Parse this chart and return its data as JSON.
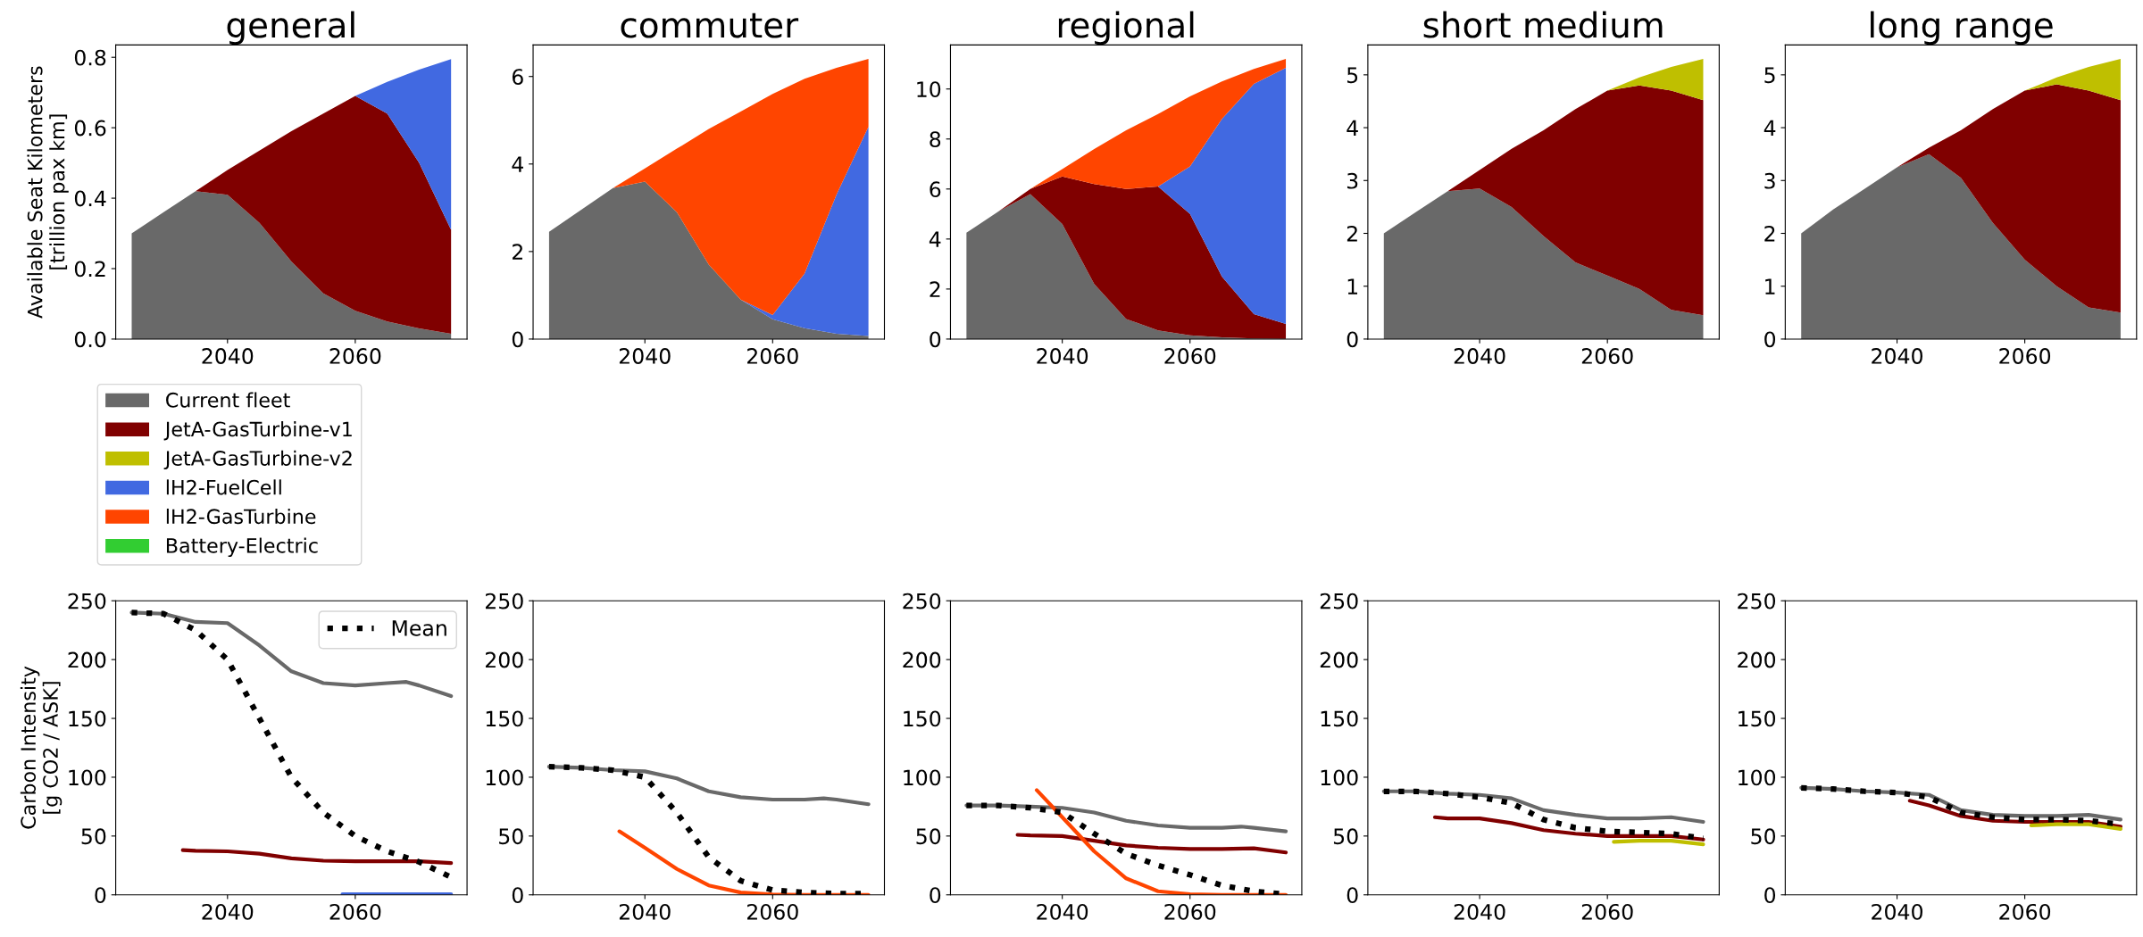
{
  "chart_data": [
    {
      "type": "area",
      "title": "general",
      "ylabel": "Available Seat Kilometers\n[trillion pax km]",
      "stacked": true,
      "legend": "bottom",
      "x": [
        2025,
        2030,
        2035,
        2040,
        2045,
        2050,
        2055,
        2060,
        2065,
        2070,
        2075
      ],
      "xlim": [
        2022.5,
        2077.5
      ],
      "xticks": [
        2040,
        2060
      ],
      "ylim": [
        0,
        0.835
      ],
      "yticks": [
        {
          "value": 0,
          "label": "0.0"
        },
        0.2,
        0.4,
        0.6,
        0.8
      ],
      "series": [
        {
          "name": "Current fleet",
          "color": "#696969",
          "values": [
            0.3,
            0.36,
            0.42,
            0.41,
            0.33,
            0.22,
            0.13,
            0.08,
            0.05,
            0.03,
            0.015
          ]
        },
        {
          "name": "JetA-GasTurbine-v1",
          "color": "#800000",
          "values": [
            0,
            0,
            0,
            0.07,
            0.205,
            0.37,
            0.51,
            0.61,
            0.59,
            0.47,
            0.295
          ]
        },
        {
          "name": "JetA-GasTurbine-v2",
          "color": "#bfbf00",
          "values": [
            null,
            null,
            null,
            null,
            null,
            null,
            null,
            null,
            null,
            null,
            null
          ]
        },
        {
          "name": "lH2-FuelCell",
          "color": "#4169e1",
          "values": [
            0,
            0,
            0,
            0,
            0,
            0,
            0,
            0,
            0.09,
            0.265,
            0.485
          ]
        },
        {
          "name": "lH2-GasTurbine",
          "color": "#ff4500",
          "values": [
            null,
            null,
            null,
            null,
            null,
            null,
            null,
            null,
            null,
            null,
            null
          ]
        },
        {
          "name": "Battery-Electric",
          "color": "#32cd32",
          "values": [
            null,
            null,
            null,
            null,
            null,
            null,
            null,
            null,
            null,
            null,
            null
          ]
        }
      ]
    },
    {
      "type": "area",
      "title": "commuter",
      "stacked": true,
      "x": [
        2025,
        2030,
        2035,
        2040,
        2045,
        2050,
        2055,
        2060,
        2065,
        2070,
        2075
      ],
      "xlim": [
        2022.5,
        2077.5
      ],
      "xticks": [
        2040,
        2060
      ],
      "ylim": [
        0,
        6.72
      ],
      "yticks": [
        0,
        2,
        4,
        6
      ],
      "series": [
        {
          "color": "#696969",
          "values": [
            2.45,
            2.95,
            3.45,
            3.6,
            2.9,
            1.7,
            0.9,
            0.45,
            0.25,
            0.12,
            0.07
          ]
        },
        {
          "color": "#4169e1",
          "values": [
            0,
            0,
            0,
            0,
            0,
            0,
            0,
            0.1,
            1.25,
            3.18,
            4.78
          ]
        },
        {
          "color": "#ff4500",
          "values": [
            0,
            0,
            0,
            0.3,
            1.45,
            3.1,
            4.3,
            5.05,
            4.45,
            2.9,
            1.55
          ]
        }
      ]
    },
    {
      "type": "area",
      "title": "regional",
      "stacked": true,
      "x": [
        2025,
        2030,
        2035,
        2040,
        2045,
        2050,
        2055,
        2060,
        2065,
        2070,
        2075
      ],
      "xlim": [
        2022.5,
        2077.5
      ],
      "xticks": [
        2040,
        2060
      ],
      "ylim": [
        0,
        11.76
      ],
      "yticks": [
        0,
        2,
        4,
        6,
        8,
        10
      ],
      "series": [
        {
          "color": "#696969",
          "values": [
            4.25,
            5.1,
            5.8,
            4.6,
            2.2,
            0.8,
            0.35,
            0.15,
            0.07,
            0.02,
            0.01
          ]
        },
        {
          "color": "#800000",
          "values": [
            0,
            0,
            0.2,
            1.9,
            4.0,
            5.2,
            5.75,
            4.85,
            2.43,
            0.98,
            0.59
          ]
        },
        {
          "color": "#4169e1",
          "values": [
            0,
            0,
            0,
            0,
            0,
            0,
            0,
            1.9,
            6.3,
            9.2,
            10.25
          ]
        },
        {
          "color": "#ff4500",
          "values": [
            0,
            0,
            0,
            0.3,
            1.4,
            2.35,
            2.9,
            2.8,
            1.5,
            0.6,
            0.35
          ]
        }
      ]
    },
    {
      "type": "area",
      "title": "short medium",
      "stacked": true,
      "x": [
        2025,
        2030,
        2035,
        2040,
        2045,
        2050,
        2055,
        2060,
        2065,
        2070,
        2075
      ],
      "xlim": [
        2022.5,
        2077.5
      ],
      "xticks": [
        2040,
        2060
      ],
      "ylim": [
        0,
        5.565
      ],
      "yticks": [
        0,
        1,
        2,
        3,
        4,
        5
      ],
      "series": [
        {
          "color": "#696969",
          "values": [
            2.0,
            2.4,
            2.8,
            2.85,
            2.5,
            1.95,
            1.45,
            1.2,
            0.95,
            0.55,
            0.45
          ]
        },
        {
          "color": "#800000",
          "values": [
            0,
            0,
            0,
            0.35,
            1.1,
            2.0,
            2.9,
            3.5,
            3.85,
            4.15,
            4.07
          ]
        },
        {
          "color": "#bfbf00",
          "values": [
            0,
            0,
            0,
            0,
            0,
            0,
            0,
            0,
            0.15,
            0.45,
            0.78
          ]
        }
      ]
    },
    {
      "type": "area",
      "title": "long range",
      "stacked": true,
      "x": [
        2025,
        2030,
        2035,
        2040,
        2045,
        2050,
        2055,
        2060,
        2065,
        2070,
        2075
      ],
      "xlim": [
        2022.5,
        2077.5
      ],
      "xticks": [
        2040,
        2060
      ],
      "ylim": [
        0,
        5.565
      ],
      "yticks": [
        0,
        1,
        2,
        3,
        4,
        5
      ],
      "series": [
        {
          "color": "#696969",
          "values": [
            2.0,
            2.45,
            2.85,
            3.25,
            3.5,
            3.05,
            2.2,
            1.5,
            1.0,
            0.6,
            0.5
          ]
        },
        {
          "color": "#800000",
          "values": [
            0,
            0,
            0,
            0,
            0.12,
            0.9,
            2.15,
            3.2,
            3.82,
            4.1,
            4.02
          ]
        },
        {
          "color": "#bfbf00",
          "values": [
            0,
            0,
            0,
            0,
            0,
            0,
            0,
            0,
            0.13,
            0.45,
            0.78
          ]
        }
      ]
    },
    {
      "type": "line",
      "ylabel": "Carbon Intensity\n[g CO2 / ASK]",
      "legend": "top right",
      "xlim": [
        2022.5,
        2077.5
      ],
      "xticks": [
        2040,
        2060
      ],
      "ylim": [
        0,
        250
      ],
      "yticks": [
        0,
        50,
        100,
        150,
        200,
        250
      ],
      "series": [
        {
          "color": "#696969",
          "x": [
            2025,
            2030,
            2035,
            2040,
            2045,
            2050,
            2055,
            2060,
            2065,
            2068,
            2070,
            2075
          ],
          "values": [
            240,
            239,
            232,
            231,
            212,
            190,
            180,
            178,
            180,
            181,
            178,
            169
          ]
        },
        {
          "color": "#800000",
          "x": [
            2033,
            2035,
            2040,
            2045,
            2050,
            2055,
            2060,
            2065,
            2070,
            2075
          ],
          "values": [
            38,
            37.5,
            37,
            35,
            31,
            29,
            28.5,
            28.5,
            28.5,
            27
          ]
        },
        {
          "color": "#4169e1",
          "x": [
            2058,
            2065,
            2070,
            2075
          ],
          "values": [
            0.5,
            0.5,
            0.5,
            0.5
          ]
        },
        {
          "name": "Mean",
          "color": "#000000",
          "line_style": "dotted",
          "x": [
            2025,
            2030,
            2035,
            2040,
            2045,
            2050,
            2055,
            2060,
            2065,
            2070,
            2075
          ],
          "values": [
            240,
            239,
            225,
            200,
            150,
            100,
            70,
            50,
            37,
            28,
            15
          ]
        }
      ]
    },
    {
      "type": "line",
      "xlim": [
        2022.5,
        2077.5
      ],
      "xticks": [
        2040,
        2060
      ],
      "ylim": [
        0,
        250
      ],
      "yticks": [
        0,
        50,
        100,
        150,
        200,
        250
      ],
      "series": [
        {
          "color": "#696969",
          "x": [
            2025,
            2030,
            2035,
            2040,
            2045,
            2050,
            2055,
            2060,
            2065,
            2068,
            2070,
            2075
          ],
          "values": [
            109,
            108,
            106,
            105,
            99,
            88,
            83,
            81,
            81,
            82,
            81,
            77
          ]
        },
        {
          "color": "#ff4500",
          "x": [
            2036,
            2040,
            2045,
            2050,
            2055,
            2060,
            2065,
            2070,
            2075
          ],
          "values": [
            54,
            40,
            22,
            8,
            2,
            0.3,
            0,
            0,
            0
          ]
        },
        {
          "color": "#000000",
          "line_style": "dotted",
          "x": [
            2025,
            2030,
            2035,
            2040,
            2045,
            2050,
            2055,
            2060,
            2065,
            2070,
            2075
          ],
          "values": [
            109,
            108,
            106,
            100,
            70,
            32,
            12,
            4,
            2,
            1,
            1
          ]
        }
      ]
    },
    {
      "type": "line",
      "xlim": [
        2022.5,
        2077.5
      ],
      "xticks": [
        2040,
        2060
      ],
      "ylim": [
        0,
        250
      ],
      "yticks": [
        0,
        50,
        100,
        150,
        200,
        250
      ],
      "series": [
        {
          "color": "#696969",
          "x": [
            2025,
            2030,
            2035,
            2040,
            2045,
            2050,
            2055,
            2060,
            2065,
            2068,
            2070,
            2075
          ],
          "values": [
            76,
            76,
            75,
            74,
            70,
            63,
            59,
            57,
            57,
            58,
            57,
            54
          ]
        },
        {
          "color": "#800000",
          "x": [
            2033,
            2035,
            2040,
            2045,
            2050,
            2055,
            2060,
            2065,
            2070,
            2075
          ],
          "values": [
            51,
            50.5,
            50,
            46,
            42,
            40,
            39,
            39,
            39.5,
            36
          ]
        },
        {
          "color": "#ff4500",
          "x": [
            2036,
            2040,
            2045,
            2050,
            2055,
            2060,
            2065,
            2070,
            2075
          ],
          "values": [
            89,
            66,
            37,
            14,
            3,
            0.5,
            0,
            0,
            0
          ]
        },
        {
          "color": "#000000",
          "line_style": "dotted",
          "x": [
            2025,
            2030,
            2035,
            2040,
            2045,
            2050,
            2055,
            2060,
            2065,
            2070,
            2075
          ],
          "values": [
            76,
            76,
            74,
            70,
            52,
            35,
            25,
            17,
            8,
            3,
            0.5
          ]
        }
      ]
    },
    {
      "type": "line",
      "xlim": [
        2022.5,
        2077.5
      ],
      "xticks": [
        2040,
        2060
      ],
      "ylim": [
        0,
        250
      ],
      "yticks": [
        0,
        50,
        100,
        150,
        200,
        250
      ],
      "series": [
        {
          "color": "#696969",
          "x": [
            2025,
            2030,
            2035,
            2040,
            2045,
            2050,
            2055,
            2060,
            2065,
            2070,
            2075
          ],
          "values": [
            88,
            88,
            86,
            85,
            82,
            72,
            68,
            65,
            65,
            66,
            62
          ]
        },
        {
          "color": "#800000",
          "x": [
            2033,
            2035,
            2040,
            2045,
            2050,
            2055,
            2060,
            2065,
            2070,
            2075
          ],
          "values": [
            66,
            65,
            65,
            61,
            55,
            52,
            50,
            50,
            50,
            47
          ]
        },
        {
          "color": "#bfbf00",
          "x": [
            2061,
            2065,
            2070,
            2075
          ],
          "values": [
            45,
            46,
            46,
            43
          ]
        },
        {
          "color": "#000000",
          "line_style": "dotted",
          "x": [
            2025,
            2030,
            2035,
            2040,
            2045,
            2050,
            2055,
            2060,
            2065,
            2070,
            2075
          ],
          "values": [
            88,
            88,
            86,
            83,
            78,
            64,
            57,
            54,
            53,
            52,
            48
          ]
        }
      ]
    },
    {
      "type": "line",
      "xlim": [
        2022.5,
        2077.5
      ],
      "xticks": [
        2040,
        2060
      ],
      "ylim": [
        0,
        250
      ],
      "yticks": [
        0,
        50,
        100,
        150,
        200,
        250
      ],
      "series": [
        {
          "color": "#696969",
          "x": [
            2025,
            2030,
            2035,
            2040,
            2045,
            2050,
            2055,
            2060,
            2065,
            2070,
            2075
          ],
          "values": [
            91,
            90,
            88,
            87,
            85,
            72,
            68,
            67,
            67,
            68,
            64
          ]
        },
        {
          "color": "#800000",
          "x": [
            2042,
            2045,
            2050,
            2055,
            2060,
            2065,
            2070,
            2075
          ],
          "values": [
            80,
            76,
            67,
            63,
            62,
            62,
            62,
            58
          ]
        },
        {
          "color": "#bfbf00",
          "x": [
            2061,
            2065,
            2070,
            2075
          ],
          "values": [
            59,
            60,
            60,
            56
          ]
        },
        {
          "color": "#000000",
          "line_style": "dotted",
          "x": [
            2025,
            2030,
            2035,
            2040,
            2045,
            2050,
            2055,
            2060,
            2065,
            2070,
            2075
          ],
          "values": [
            91,
            90,
            88,
            87,
            83,
            70,
            66,
            64,
            64,
            63,
            60
          ]
        }
      ]
    }
  ]
}
